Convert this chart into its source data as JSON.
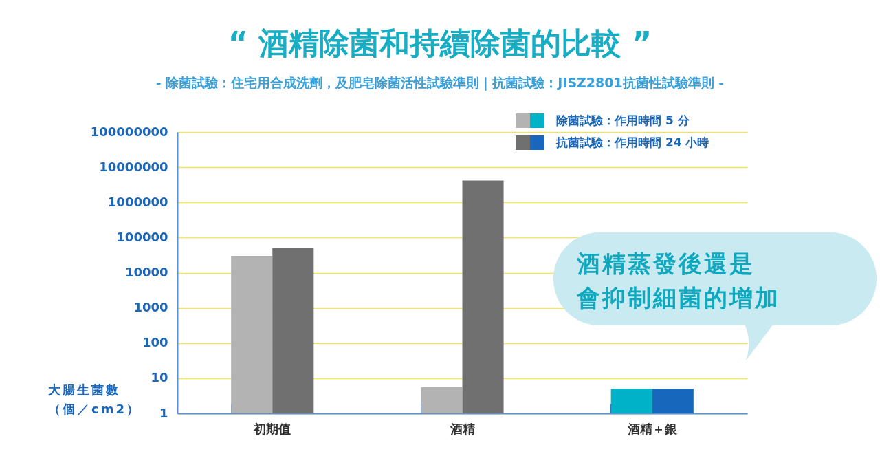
{
  "chart_data": {
    "type": "bar",
    "title": "“ 酒精除菌和持續除菌的比較 ”",
    "subtitle": "- 除菌試驗：住宅用合成洗劑，及肥皂除菌活性試驗準則｜抗菌試驗：JISZ2801抗菌性試驗準則 -",
    "ylabel": "大腸生菌數（個／cm2）",
    "categories": [
      "初期值",
      "酒精",
      "酒精＋銀"
    ],
    "series": [
      {
        "name": "除菌試驗：作用時間 5 分",
        "color": "#b3b3b3",
        "colors": [
          "#b3b3b3",
          "#b3b3b3",
          "#00b2c8"
        ],
        "values": [
          30000,
          5.6,
          5
        ]
      },
      {
        "name": "抗菌試驗：作用時間 24 小時",
        "color": "#707070",
        "colors": [
          "#707070",
          "#707070",
          "#1768bc"
        ],
        "values": [
          50000,
          4200000,
          5
        ]
      }
    ],
    "log": true,
    "ylim": [
      1,
      100000000
    ],
    "yticks": [
      1,
      10,
      100,
      1000,
      10000,
      100000,
      1000000,
      10000000,
      100000000
    ],
    "grid": "y",
    "legend": "top right",
    "annotations": [
      "酒精蒸發後還是",
      "會抑制細菌的增加"
    ]
  }
}
